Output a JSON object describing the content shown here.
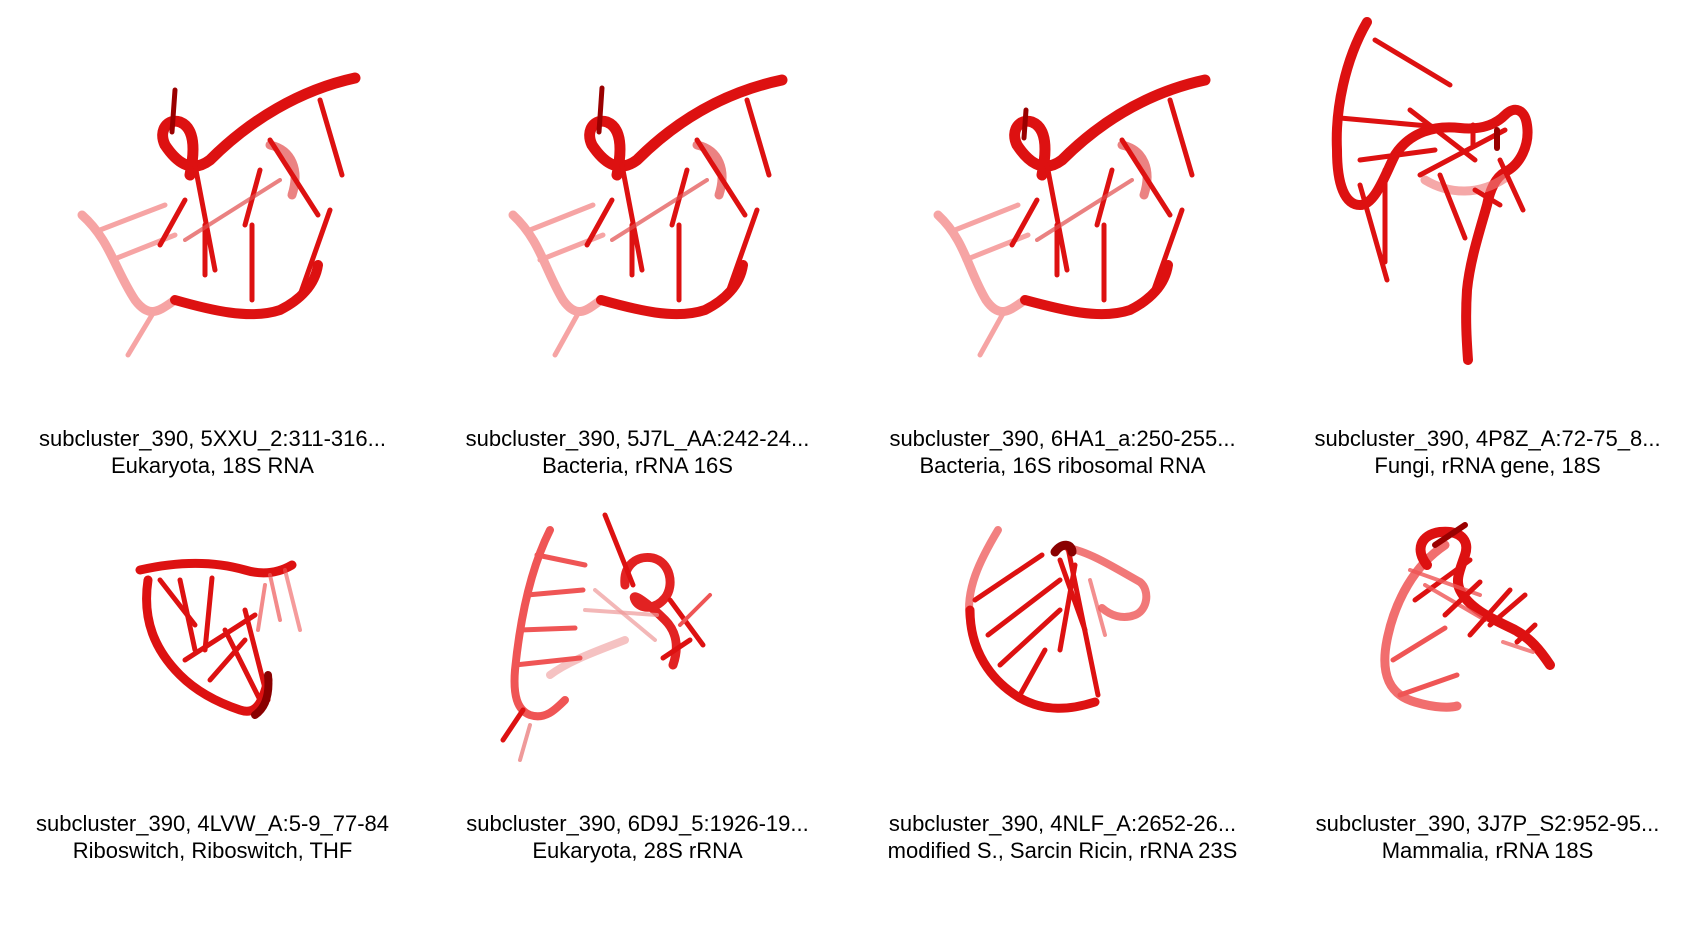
{
  "colors": {
    "backbone": "#dd1111",
    "backbone_dark": "#8a0000",
    "backbone_light": "#ef6a6a",
    "text": "#000000",
    "background": "#ffffff"
  },
  "cells": [
    {
      "name": "thumbnail-5xxu",
      "line1": "subcluster_390, 5XXU_2:311-316...",
      "line2": "Eukaryota, 18S RNA"
    },
    {
      "name": "thumbnail-5j7l",
      "line1": "subcluster_390, 5J7L_AA:242-24...",
      "line2": "Bacteria, rRNA 16S"
    },
    {
      "name": "thumbnail-6ha1",
      "line1": "subcluster_390, 6HA1_a:250-255...",
      "line2": "Bacteria, 16S ribosomal RNA"
    },
    {
      "name": "thumbnail-4p8z",
      "line1": "subcluster_390, 4P8Z_A:72-75_8...",
      "line2": "Fungi, rRNA gene, 18S"
    },
    {
      "name": "thumbnail-4lvw",
      "line1": "subcluster_390, 4LVW_A:5-9_77-84",
      "line2": "Riboswitch, Riboswitch, THF"
    },
    {
      "name": "thumbnail-6d9j",
      "line1": "subcluster_390, 6D9J_5:1926-19...",
      "line2": "Eukaryota, 28S rRNA"
    },
    {
      "name": "thumbnail-4nlf",
      "line1": "subcluster_390, 4NLF_A:2652-26...",
      "line2": "modified S., Sarcin Ricin, rRNA 23S"
    },
    {
      "name": "thumbnail-3j7p",
      "line1": "subcluster_390, 3J7P_S2:952-95...",
      "line2": "Mammalia, rRNA 18S"
    }
  ]
}
